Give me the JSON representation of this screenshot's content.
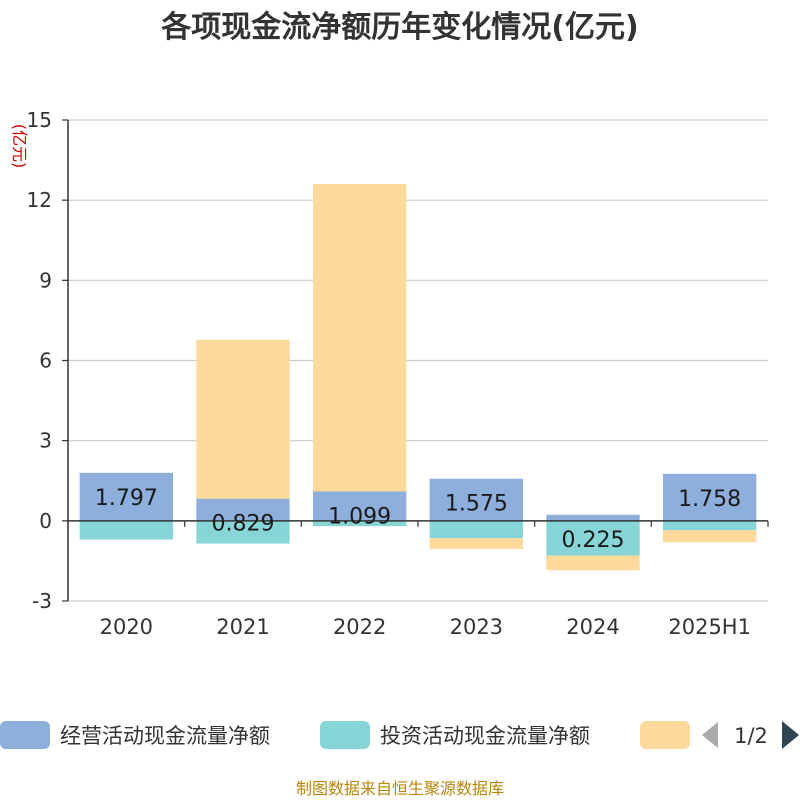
{
  "chart_data": {
    "type": "bar",
    "stacked": true,
    "title": "各项现金流净额历年变化情况(亿元)",
    "ylabel": "(亿元)",
    "categories": [
      "2020",
      "2021",
      "2022",
      "2023",
      "2024",
      "2025H1"
    ],
    "ylim": [
      -3,
      15
    ],
    "yticks": [
      -3,
      0,
      3,
      6,
      9,
      12,
      15
    ],
    "grid": true,
    "series": [
      {
        "name": "经营活动现金流量净额",
        "color": "#8eaedb",
        "values": [
          1.797,
          0.829,
          1.099,
          1.575,
          0.225,
          1.758
        ],
        "labels": [
          "1.797",
          "0.829",
          "1.099",
          "1.575",
          "0.225",
          "1.758"
        ]
      },
      {
        "name": "投资活动现金流量净额",
        "color": "#88d5d8",
        "values": [
          -0.7,
          -0.85,
          -0.2,
          -0.65,
          -1.3,
          -0.35
        ]
      },
      {
        "name": "",
        "color": "#fdd99b",
        "values": [
          0,
          5.95,
          11.5,
          -0.4,
          -0.55,
          -0.45
        ]
      }
    ],
    "legend": {
      "position": "bottom",
      "page": "1/2"
    }
  },
  "footer": "制图数据来自恒生聚源数据库"
}
